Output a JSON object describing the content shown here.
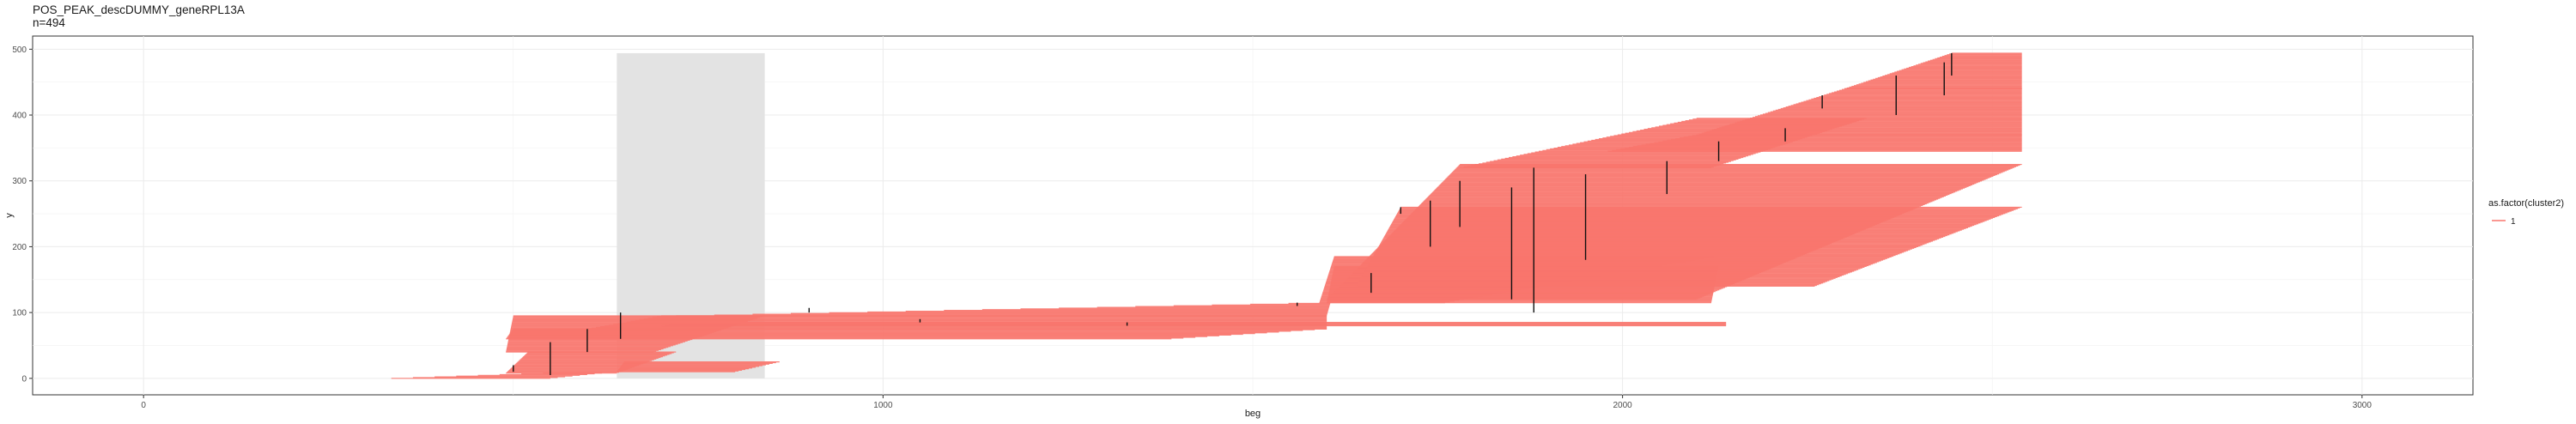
{
  "chart_data": {
    "type": "segment",
    "title": "POS_PEAK_descDUMMY_geneRPL13A",
    "subtitle": "n=494",
    "xlabel": "beg",
    "ylabel": "y",
    "xlim": [
      -150,
      3150
    ],
    "ylim": [
      -25,
      520
    ],
    "x_ticks": [
      0,
      1000,
      2000,
      3000
    ],
    "x_tick_labels": [
      "0",
      "1000",
      "2000",
      "3000"
    ],
    "y_ticks": [
      0,
      100,
      200,
      300,
      400,
      500
    ],
    "y_tick_labels": [
      "0",
      "100",
      "200",
      "300",
      "400",
      "500"
    ],
    "grid": true,
    "legend": {
      "title": "as.factor(cluster2)",
      "entries": [
        "1"
      ],
      "position": "right"
    },
    "series_color": "#F8766D",
    "highlight_region": {
      "xmin": 640,
      "xmax": 840,
      "ymin": 0,
      "ymax": 494,
      "color": "#e3e3e3"
    },
    "segment_groups": [
      {
        "y": [
          0,
          8
        ],
        "beg": [
          335,
          540
        ],
        "end": [
          550,
          620
        ]
      },
      {
        "y": [
          8,
          40
        ],
        "beg": [
          490,
          520
        ],
        "end": [
          640,
          720
        ]
      },
      {
        "y": [
          10,
          25
        ],
        "beg": [
          640,
          650
        ],
        "end": [
          800,
          860
        ]
      },
      {
        "y": [
          40,
          95
        ],
        "beg": [
          490,
          500
        ],
        "end": [
          690,
          840
        ]
      },
      {
        "y": [
          60,
          75
        ],
        "beg": [
          490,
          500
        ],
        "end": [
          1390,
          1600
        ]
      },
      {
        "y": [
          75,
          95
        ],
        "beg": [
          600,
          700
        ],
        "end": [
          1600,
          1600
        ]
      },
      {
        "y": [
          80,
          85
        ],
        "beg": [
          700,
          720
        ],
        "end": [
          2140,
          2140
        ]
      },
      {
        "y": [
          95,
          115
        ],
        "beg": [
          720,
          1600
        ],
        "end": [
          1600,
          1605
        ]
      },
      {
        "y": [
          115,
          185
        ],
        "beg": [
          1590,
          1610
        ],
        "end": [
          1760,
          2130
        ]
      },
      {
        "y": [
          115,
          170
        ],
        "beg": [
          1600,
          1610
        ],
        "end": [
          2120,
          2130
        ]
      },
      {
        "y": [
          120,
          325
        ],
        "beg": [
          1600,
          1780
        ],
        "end": [
          2100,
          2540
        ]
      },
      {
        "y": [
          140,
          260
        ],
        "beg": [
          1640,
          1700
        ],
        "end": [
          2260,
          2540
        ]
      },
      {
        "y": [
          320,
          395
        ],
        "beg": [
          1780,
          2100
        ],
        "end": [
          2120,
          2330
        ]
      },
      {
        "y": [
          345,
          370
        ],
        "beg": [
          1980,
          2100
        ],
        "end": [
          2540,
          2540
        ]
      },
      {
        "y": [
          370,
          440
        ],
        "beg": [
          2100,
          2300
        ],
        "end": [
          2540,
          2540
        ]
      },
      {
        "y": [
          440,
          494
        ],
        "beg": [
          2300,
          2445
        ],
        "end": [
          2540,
          2540
        ]
      }
    ],
    "peak_marks": [
      {
        "x": 500,
        "y": [
          10,
          20
        ]
      },
      {
        "x": 550,
        "y": [
          5,
          55
        ]
      },
      {
        "x": 600,
        "y": [
          40,
          75
        ]
      },
      {
        "x": 645,
        "y": [
          60,
          100
        ]
      },
      {
        "x": 900,
        "y": [
          100,
          107
        ]
      },
      {
        "x": 1050,
        "y": [
          85,
          90
        ]
      },
      {
        "x": 1330,
        "y": [
          80,
          85
        ]
      },
      {
        "x": 1560,
        "y": [
          110,
          115
        ]
      },
      {
        "x": 1660,
        "y": [
          130,
          160
        ]
      },
      {
        "x": 1700,
        "y": [
          250,
          260
        ]
      },
      {
        "x": 1740,
        "y": [
          200,
          270
        ]
      },
      {
        "x": 1780,
        "y": [
          230,
          300
        ]
      },
      {
        "x": 1850,
        "y": [
          120,
          290
        ]
      },
      {
        "x": 1880,
        "y": [
          100,
          320
        ]
      },
      {
        "x": 1950,
        "y": [
          180,
          310
        ]
      },
      {
        "x": 2060,
        "y": [
          280,
          330
        ]
      },
      {
        "x": 2130,
        "y": [
          330,
          360
        ]
      },
      {
        "x": 2220,
        "y": [
          360,
          380
        ]
      },
      {
        "x": 2270,
        "y": [
          410,
          430
        ]
      },
      {
        "x": 2370,
        "y": [
          400,
          460
        ]
      },
      {
        "x": 2435,
        "y": [
          430,
          480
        ]
      },
      {
        "x": 2445,
        "y": [
          460,
          494
        ]
      }
    ]
  }
}
